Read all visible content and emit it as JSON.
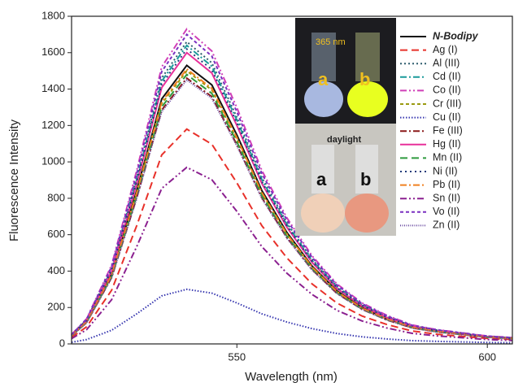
{
  "chart_data": {
    "type": "line",
    "xlabel": "Wavelength (nm)",
    "ylabel": "Fluorescence Intensity",
    "x": [
      517,
      520,
      525,
      530,
      535,
      540,
      545,
      550,
      555,
      560,
      565,
      570,
      575,
      580,
      585,
      590,
      595,
      600,
      605
    ],
    "xlim": [
      517,
      605
    ],
    "xticks": [
      550,
      600
    ],
    "ylim": [
      0,
      1800
    ],
    "yticks": [
      0,
      200,
      400,
      600,
      800,
      1000,
      1200,
      1400,
      1600,
      1800
    ],
    "legend": "upper right",
    "annotations": [
      "365 nm",
      "a",
      "b",
      "daylight",
      "a",
      "b"
    ],
    "series": [
      {
        "name": "N-Bodipy",
        "color": "#111111",
        "dash": "",
        "values": [
          46,
          122,
          383,
          842,
          1346,
          1530,
          1423,
          1148,
          842,
          612,
          428,
          291,
          199,
          138,
          92,
          69,
          54,
          38,
          31
        ]
      },
      {
        "name": "Ag (I)",
        "color": "#e8312a",
        "dash": "9,5",
        "values": [
          35,
          94,
          295,
          649,
          1038,
          1180,
          1097,
          885,
          649,
          472,
          330,
          224,
          153,
          106,
          71,
          53,
          41,
          30,
          24
        ]
      },
      {
        "name": "Al (III)",
        "color": "#2f5d6e",
        "dash": "2,3",
        "values": [
          50,
          133,
          415,
          913,
          1461,
          1660,
          1544,
          1245,
          913,
          664,
          465,
          315,
          216,
          149,
          100,
          75,
          58,
          42,
          33
        ]
      },
      {
        "name": "Cd (II)",
        "color": "#1a9a9a",
        "dash": "8,3,2,3",
        "values": [
          49,
          131,
          410,
          902,
          1443,
          1640,
          1525,
          1230,
          902,
          656,
          459,
          312,
          213,
          148,
          98,
          74,
          57,
          41,
          33
        ]
      },
      {
        "name": "Co (II)",
        "color": "#d040b8",
        "dash": "8,3,2,3,2,3",
        "values": [
          52,
          138,
          433,
          952,
          1522,
          1730,
          1609,
          1298,
          952,
          692,
          484,
          329,
          225,
          156,
          104,
          78,
          61,
          43,
          35
        ]
      },
      {
        "name": "Cr (III)",
        "color": "#9a9a10",
        "dash": "4,3",
        "values": [
          45,
          120,
          375,
          825,
          1320,
          1500,
          1395,
          1125,
          825,
          600,
          420,
          285,
          195,
          135,
          90,
          68,
          53,
          38,
          30
        ]
      },
      {
        "name": "Cu (II)",
        "color": "#3838b0",
        "dash": "1.5,2",
        "values": [
          9,
          24,
          75,
          165,
          264,
          300,
          279,
          225,
          165,
          120,
          84,
          57,
          39,
          27,
          18,
          14,
          11,
          8,
          6
        ]
      },
      {
        "name": "Fe (III)",
        "color": "#8b1a1a",
        "dash": "8,3,2,3",
        "values": [
          44,
          117,
          365,
          803,
          1285,
          1460,
          1358,
          1095,
          803,
          584,
          409,
          277,
          190,
          131,
          88,
          66,
          51,
          37,
          29
        ]
      },
      {
        "name": "Hg (II)",
        "color": "#e8309a",
        "dash": "",
        "values": [
          48,
          128,
          400,
          880,
          1408,
          1600,
          1488,
          1200,
          880,
          640,
          448,
          304,
          208,
          144,
          96,
          72,
          56,
          40,
          32
        ]
      },
      {
        "name": "Mn (II)",
        "color": "#2e9a3e",
        "dash": "9,5",
        "values": [
          44,
          118,
          370,
          814,
          1302,
          1480,
          1376,
          1110,
          814,
          592,
          414,
          281,
          192,
          133,
          89,
          67,
          52,
          37,
          30
        ]
      },
      {
        "name": "Ni (II)",
        "color": "#1f3a7a",
        "dash": "2,4",
        "values": [
          49,
          130,
          405,
          891,
          1426,
          1620,
          1507,
          1215,
          891,
          648,
          454,
          308,
          211,
          146,
          97,
          73,
          57,
          41,
          32
        ]
      },
      {
        "name": "Pb (II)",
        "color": "#f08020",
        "dash": "8,3,2,3",
        "values": [
          45,
          121,
          378,
          831,
          1329,
          1510,
          1404,
          1133,
          831,
          604,
          423,
          287,
          196,
          136,
          91,
          68,
          53,
          38,
          30
        ]
      },
      {
        "name": "Sn (II)",
        "color": "#8b2090",
        "dash": "8,3,2,3,2,3",
        "values": [
          29,
          78,
          243,
          534,
          854,
          970,
          902,
          728,
          534,
          388,
          272,
          184,
          126,
          87,
          58,
          44,
          34,
          24,
          19
        ]
      },
      {
        "name": "Vo (II)",
        "color": "#7a30c0",
        "dash": "4,3",
        "values": [
          51,
          136,
          425,
          935,
          1496,
          1700,
          1581,
          1275,
          935,
          680,
          476,
          323,
          221,
          153,
          102,
          77,
          60,
          43,
          34
        ]
      },
      {
        "name": "Zn (II)",
        "color": "#6a4aa0",
        "dash": "1,1.5",
        "values": [
          44,
          116,
          363,
          798,
          1276,
          1450,
          1349,
          1088,
          798,
          580,
          406,
          276,
          189,
          131,
          87,
          65,
          51,
          36,
          29
        ]
      }
    ]
  }
}
